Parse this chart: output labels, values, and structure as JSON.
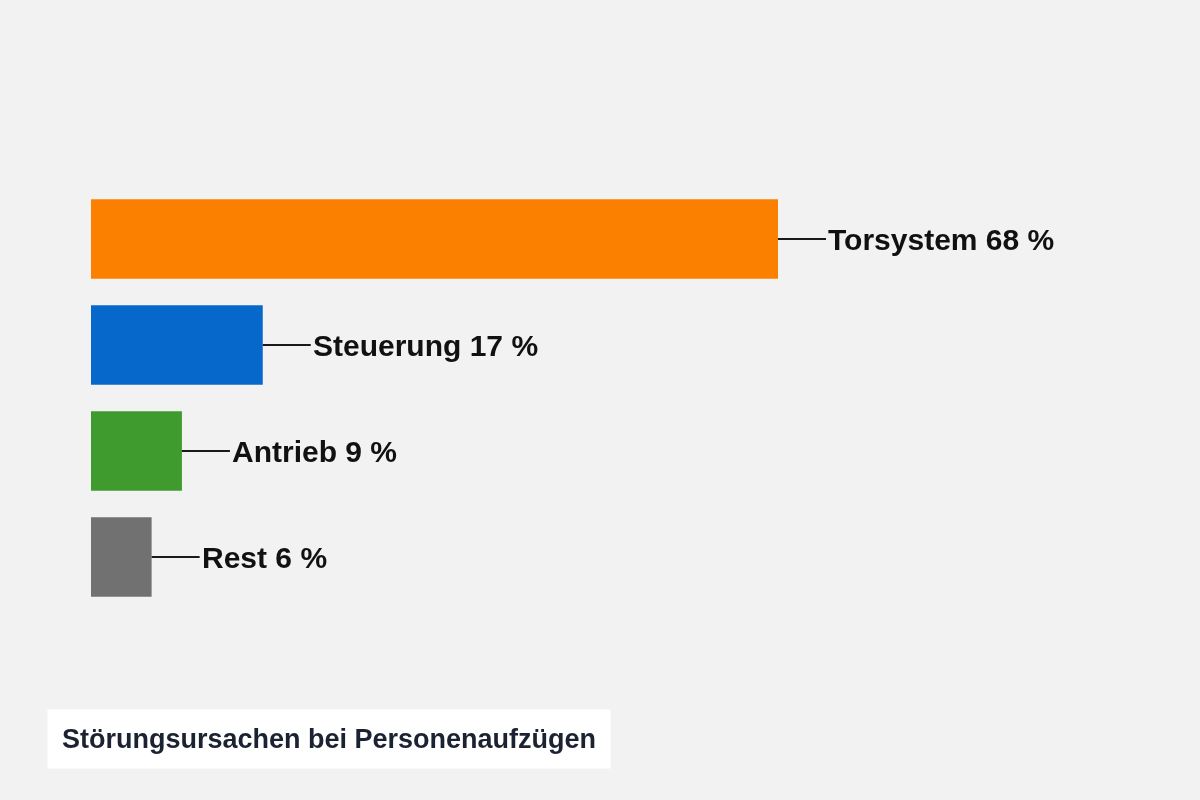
{
  "chart_data": {
    "type": "bar",
    "orientation": "horizontal",
    "title": "Störungsursachen bei Personenaufzügen",
    "categories": [
      null,
      null,
      null,
      null
    ],
    "values": [
      68,
      17,
      9,
      6
    ],
    "colors": [
      "#fb8000",
      "#0768cb",
      "#3f9b2d",
      "#717171"
    ],
    "value_labels": [
      "Torsystem 68 %",
      "Steuerung 17 %",
      "Antrieb 9 %",
      "Rest 6 %"
    ],
    "tick_labels": false
  }
}
